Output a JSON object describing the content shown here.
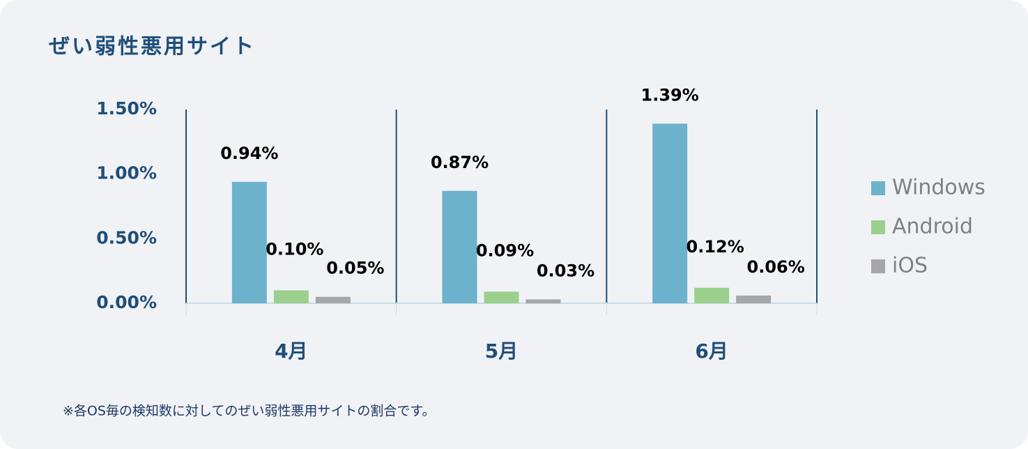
{
  "chart_data": {
    "type": "bar",
    "title": "ぜい弱性悪用サイト",
    "categories": [
      "4月",
      "5月",
      "6月"
    ],
    "series": [
      {
        "name": "Windows",
        "color": "#6cb2cc",
        "values": [
          0.94,
          0.87,
          1.39
        ],
        "value_labels": [
          "0.94%",
          "0.87%",
          "1.39%"
        ]
      },
      {
        "name": "Android",
        "color": "#9bd08c",
        "values": [
          0.1,
          0.09,
          0.12
        ],
        "value_labels": [
          "0.10%",
          "0.09%",
          "0.12%"
        ]
      },
      {
        "name": "iOS",
        "color": "#a6a6a6",
        "values": [
          0.05,
          0.03,
          0.06
        ],
        "value_labels": [
          "0.05%",
          "0.03%",
          "0.06%"
        ]
      }
    ],
    "ylim": [
      0,
      1.5
    ],
    "yticks": [
      {
        "value": 0,
        "label": "0.00%"
      },
      {
        "value": 0.5,
        "label": "0.50%"
      },
      {
        "value": 1,
        "label": "1.00%"
      },
      {
        "value": 1.5,
        "label": "1.50%"
      }
    ],
    "legend": "right",
    "note": "※各OS毎の検知数に対してのぜい弱性悪用サイトの割合です。"
  }
}
